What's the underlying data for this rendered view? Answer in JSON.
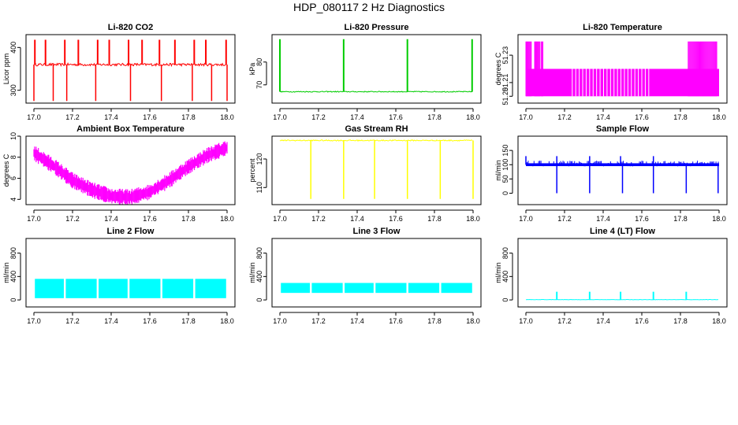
{
  "page": {
    "title": "HDP_080117  2 Hz Diagnostics"
  },
  "chart_data": [
    {
      "id": "co2",
      "type": "line",
      "title": "Li-820 CO2",
      "xlabel": "",
      "ylabel": "Licor ppm",
      "xlim": [
        17.0,
        18.0
      ],
      "ylim": [
        270,
        430
      ],
      "xticks": [
        "17.0",
        "17.2",
        "17.4",
        "17.6",
        "17.8",
        "18.0"
      ],
      "yticks": [
        "300",
        "400"
      ],
      "ytick_values": [
        300,
        400
      ],
      "color": "#ff0000",
      "baseline": 360,
      "noise": 3,
      "spikes_up": [
        17.005,
        17.06,
        17.16,
        17.23,
        17.33,
        17.39,
        17.49,
        17.56,
        17.65,
        17.73,
        17.83,
        17.89,
        17.995
      ],
      "spike_up_value": 418,
      "spikes_down": [
        17.0,
        17.1,
        17.17,
        17.32,
        17.5,
        17.66,
        17.82,
        17.92,
        18.0
      ],
      "spike_down_value": 275
    },
    {
      "id": "pressure",
      "type": "line",
      "title": "Li-820 Pressure",
      "xlabel": "",
      "ylabel": "kPa",
      "xlim": [
        17.0,
        18.0
      ],
      "ylim": [
        62,
        92
      ],
      "xticks": [
        "17.0",
        "17.2",
        "17.4",
        "17.6",
        "17.8",
        "18.0"
      ],
      "yticks": [
        "70",
        "80"
      ],
      "ytick_values": [
        70,
        80
      ],
      "color": "#00cc00",
      "baseline": 67.0,
      "noise": 0.2,
      "spikes_up": [
        17.0,
        17.33,
        17.66,
        17.995
      ],
      "spike_up_value": 90
    },
    {
      "id": "licor-temp",
      "type": "line",
      "title": "Li-820 Temperature",
      "xlabel": "",
      "ylabel": "degrees C",
      "xlim": [
        17.0,
        18.0
      ],
      "ylim": [
        51.195,
        51.245
      ],
      "xticks": [
        "17.0",
        "17.2",
        "17.4",
        "17.6",
        "17.8",
        "18.0"
      ],
      "yticks": [
        "51.20",
        "51.21",
        "51.23"
      ],
      "ytick_values": [
        51.2,
        51.21,
        51.23
      ],
      "color": "#ff00ff",
      "low_level": 51.2,
      "high_level": 51.22,
      "top_level": 51.24
    },
    {
      "id": "box-temp",
      "type": "line",
      "title": "Ambient Box Temperature",
      "xlabel": "",
      "ylabel": "degrees C",
      "xlim": [
        17.0,
        18.0
      ],
      "ylim": [
        3.5,
        10
      ],
      "xticks": [
        "17.0",
        "17.2",
        "17.4",
        "17.6",
        "17.8",
        "18.0"
      ],
      "yticks": [
        "4",
        "6",
        "8",
        "10"
      ],
      "ytick_values": [
        4,
        6,
        8,
        10
      ],
      "color": "#ff00ff",
      "x": [
        17.0,
        17.1,
        17.2,
        17.3,
        17.4,
        17.5,
        17.6,
        17.7,
        17.8,
        17.9,
        18.0
      ],
      "y": [
        8.4,
        7.2,
        5.8,
        4.9,
        4.3,
        4.2,
        4.7,
        5.8,
        7.1,
        8.2,
        8.9
      ],
      "band": 0.55
    },
    {
      "id": "rh",
      "type": "line",
      "title": "Gas Stream RH",
      "xlabel": "",
      "ylabel": "percent",
      "xlim": [
        17.0,
        18.0
      ],
      "ylim": [
        104,
        128
      ],
      "xticks": [
        "17.0",
        "17.2",
        "17.4",
        "17.6",
        "17.8",
        "18.0"
      ],
      "yticks": [
        "110",
        "120"
      ],
      "ytick_values": [
        110,
        120
      ],
      "color": "#ffff00",
      "baseline": 126.5,
      "noise": 0.2,
      "spikes_down": [
        17.16,
        17.33,
        17.49,
        17.66,
        17.83,
        18.0
      ],
      "spike_down_value": 106
    },
    {
      "id": "sample-flow",
      "type": "line",
      "title": "Sample Flow",
      "xlabel": "",
      "ylabel": "ml/min",
      "xlim": [
        17.0,
        18.0
      ],
      "ylim": [
        -40,
        200
      ],
      "xticks": [
        "17.0",
        "17.2",
        "17.4",
        "17.6",
        "17.8",
        "18.0"
      ],
      "yticks": [
        "0",
        "50",
        "100",
        "150"
      ],
      "ytick_values": [
        0,
        50,
        100,
        150
      ],
      "color": "#0000ff",
      "baseline": 100,
      "noise": 5,
      "spikes_down": [
        17.16,
        17.33,
        17.5,
        17.66,
        17.83,
        17.995
      ],
      "spike_down_value": 0,
      "spikes_up": [
        17.0,
        17.16,
        17.33,
        17.49,
        17.66
      ],
      "spike_up_value": 130
    },
    {
      "id": "line2",
      "type": "line",
      "title": "Line 2 Flow",
      "xlabel": "",
      "ylabel": "ml/min",
      "xlim": [
        17.0,
        18.0
      ],
      "ylim": [
        -120,
        1050
      ],
      "xticks": [
        "17.0",
        "17.2",
        "17.4",
        "17.6",
        "17.8",
        "18.0"
      ],
      "yticks": [
        "0",
        "400",
        "800"
      ],
      "ytick_values": [
        0,
        400,
        800
      ],
      "color": "#00ffff",
      "band_low": 30,
      "band_high": 360,
      "gaps": [
        17.0,
        17.16,
        17.33,
        17.49,
        17.66,
        17.83,
        18.0
      ]
    },
    {
      "id": "line3",
      "type": "line",
      "title": "Line 3 Flow",
      "xlabel": "",
      "ylabel": "ml/min",
      "xlim": [
        17.0,
        18.0
      ],
      "ylim": [
        -120,
        1050
      ],
      "xticks": [
        "17.0",
        "17.2",
        "17.4",
        "17.6",
        "17.8",
        "18.0"
      ],
      "yticks": [
        "0",
        "400",
        "800"
      ],
      "ytick_values": [
        0,
        400,
        800
      ],
      "color": "#00ffff",
      "band_low": 120,
      "band_high": 290,
      "gaps": [
        17.0,
        17.16,
        17.33,
        17.49,
        17.66,
        17.83,
        18.0
      ]
    },
    {
      "id": "line4",
      "type": "line",
      "title": "Line 4 (LT) Flow",
      "xlabel": "",
      "ylabel": "ml/min",
      "xlim": [
        17.0,
        18.0
      ],
      "ylim": [
        -120,
        1050
      ],
      "xticks": [
        "17.0",
        "17.2",
        "17.4",
        "17.6",
        "17.8",
        "18.0"
      ],
      "yticks": [
        "0",
        "400",
        "800"
      ],
      "ytick_values": [
        0,
        400,
        800
      ],
      "color": "#00ffff",
      "baseline": 5,
      "noise": 3,
      "spikes_up": [
        17.16,
        17.33,
        17.49,
        17.66,
        17.83
      ],
      "spike_up_value": 140
    }
  ]
}
